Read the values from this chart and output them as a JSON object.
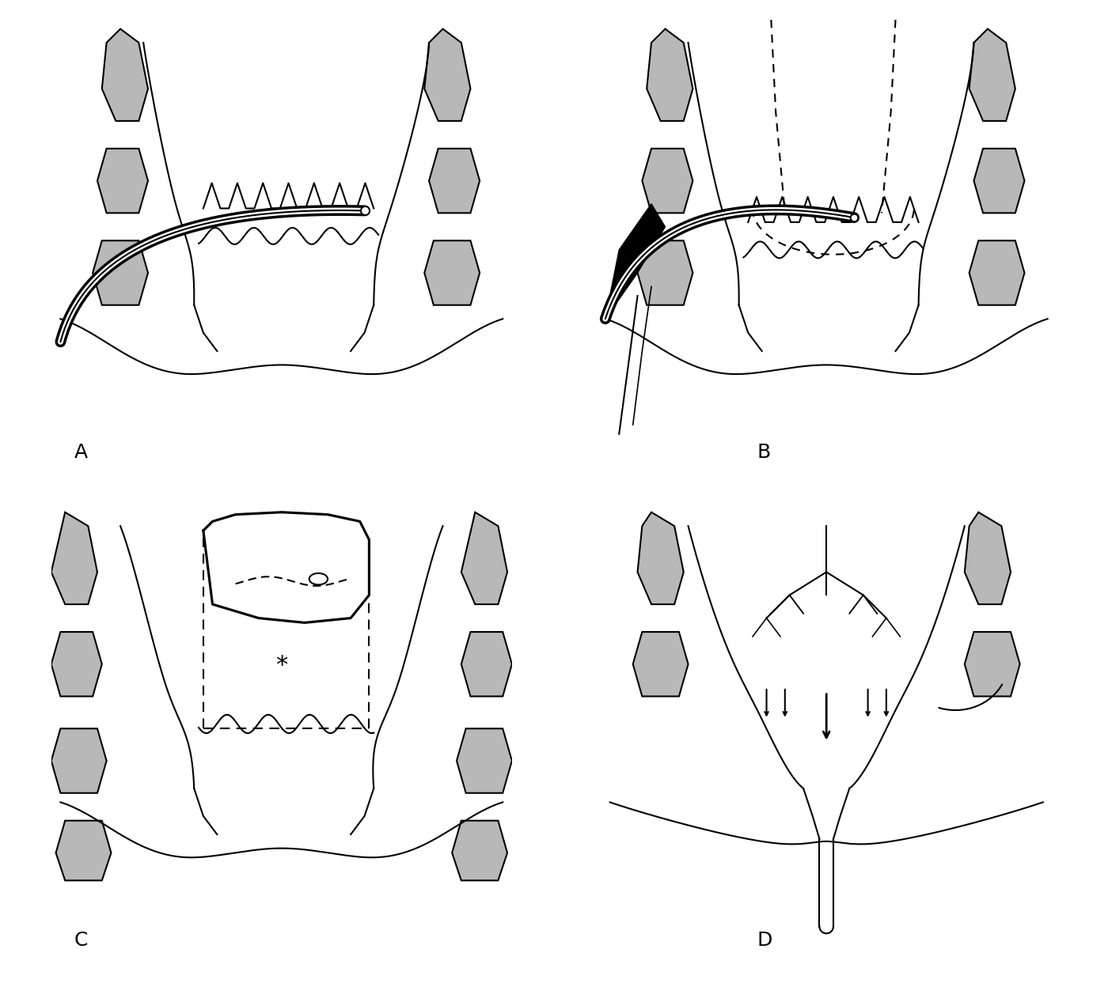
{
  "background_color": "#ffffff",
  "line_color": "#000000",
  "fill_color": "#b8b8b8",
  "label_fontsize": 18,
  "labels": [
    "A",
    "B",
    "C",
    "D"
  ]
}
